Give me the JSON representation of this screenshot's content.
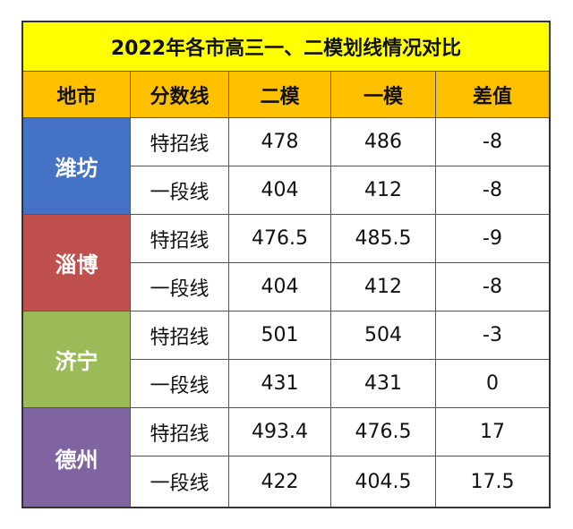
{
  "table": {
    "title": "2022年各市高三一、二模划线情况对比",
    "headers": [
      "地市",
      "分数线",
      "二模",
      "一模",
      "差值"
    ],
    "groups": [
      {
        "city": "潍坊",
        "color": "#4472c4",
        "rows": [
          {
            "line": "特招线",
            "ermo": "478",
            "yimo": "486",
            "diff": "-8"
          },
          {
            "line": "一段线",
            "ermo": "404",
            "yimo": "412",
            "diff": "-8"
          }
        ]
      },
      {
        "city": "淄博",
        "color": "#c0504d",
        "rows": [
          {
            "line": "特招线",
            "ermo": "476.5",
            "yimo": "485.5",
            "diff": "-9"
          },
          {
            "line": "一段线",
            "ermo": "404",
            "yimo": "412",
            "diff": "-8"
          }
        ]
      },
      {
        "city": "济宁",
        "color": "#9bbb59",
        "rows": [
          {
            "line": "特招线",
            "ermo": "501",
            "yimo": "504",
            "diff": "-3"
          },
          {
            "line": "一段线",
            "ermo": "431",
            "yimo": "431",
            "diff": "0"
          }
        ]
      },
      {
        "city": "德州",
        "color": "#8064a2",
        "rows": [
          {
            "line": "特招线",
            "ermo": "493.4",
            "yimo": "476.5",
            "diff": "17"
          },
          {
            "line": "一段线",
            "ermo": "422",
            "yimo": "404.5",
            "diff": "17.5"
          }
        ]
      }
    ]
  }
}
